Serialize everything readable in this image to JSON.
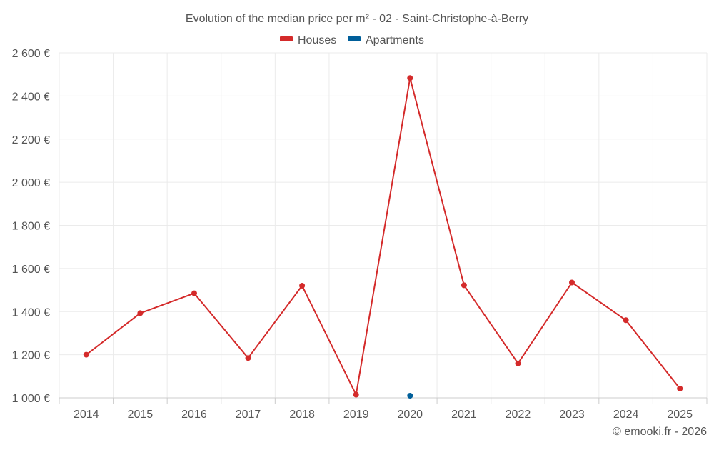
{
  "chart_data": {
    "type": "line",
    "title": "Evolution of the median price per m² - 02 - Saint-Christophe-à-Berry",
    "categories": [
      "2014",
      "2015",
      "2016",
      "2017",
      "2018",
      "2019",
      "2020",
      "2021",
      "2022",
      "2023",
      "2024",
      "2025"
    ],
    "series": [
      {
        "name": "Houses",
        "color": "#d42a2a",
        "values": [
          1200,
          1393,
          1485,
          1185,
          1520,
          1015,
          2483,
          1522,
          1160,
          1535,
          1360,
          1043
        ]
      },
      {
        "name": "Apartments",
        "color": "#005f9a",
        "values": [
          null,
          null,
          null,
          null,
          null,
          null,
          1010,
          null,
          null,
          null,
          null,
          null
        ]
      }
    ],
    "y_ticks": [
      1000,
      1200,
      1400,
      1600,
      1800,
      2000,
      2200,
      2400,
      2600
    ],
    "y_tick_labels": [
      "1 000 €",
      "1 200 €",
      "1 400 €",
      "1 600 €",
      "1 800 €",
      "2 000 €",
      "2 200 €",
      "2 400 €",
      "2 600 €"
    ],
    "ylim": [
      1000,
      2600
    ],
    "xlabel": "",
    "ylabel": "",
    "grid": true,
    "legend_position": "top-center"
  },
  "credit": "© emooki.fr - 2026"
}
